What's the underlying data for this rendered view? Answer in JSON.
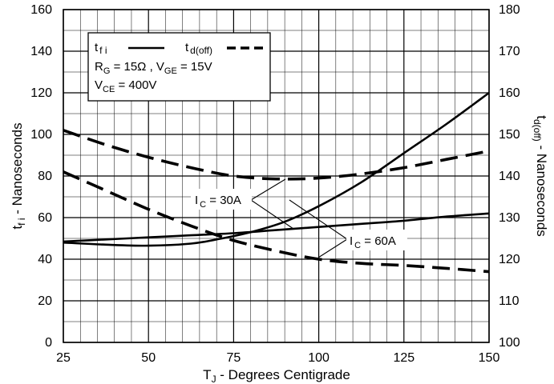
{
  "chart_data": {
    "type": "line",
    "x_axis": {
      "label_main": "T",
      "label_sub": "J",
      "label_rest": " - Degrees Centigrade",
      "range": [
        25,
        150
      ],
      "ticks": [
        25,
        50,
        75,
        100,
        125,
        150
      ]
    },
    "y_left": {
      "label_main": "t",
      "label_sub": "f i",
      "label_rest": " - Nanoseconds",
      "range": [
        0,
        160
      ],
      "ticks": [
        0,
        20,
        40,
        60,
        80,
        100,
        120,
        140,
        160
      ]
    },
    "y_right": {
      "label_main": "t",
      "label_sub": "d(off)",
      "label_rest": " - Nanoseconds",
      "range": [
        100,
        180
      ],
      "ticks": [
        100,
        110,
        120,
        130,
        140,
        150,
        160,
        170,
        180
      ]
    },
    "grid": true,
    "legend": {
      "placement": "top-left",
      "tfi_main": "t",
      "tfi_sub": "f i",
      "tdoff_main": "t",
      "tdoff_sub": "d(off)",
      "cond1_rg": "R",
      "cond1_rg_sub": "G",
      "cond1_rg_val": " = 15Ω ,  V",
      "cond1_vge_sub": "GE",
      "cond1_vge_val": " = 15V",
      "cond2_v": "V",
      "cond2_vce_sub": "CE",
      "cond2_vce_val": " = 400V"
    },
    "series": [
      {
        "group": "IC = 30A",
        "kind": "t_fi",
        "axis": "left",
        "style": "solid",
        "x": [
          25,
          37.5,
          50,
          62.5,
          75,
          87.5,
          100,
          112.5,
          125,
          137.5,
          150
        ],
        "y": [
          48.5,
          49.5,
          50.5,
          51.5,
          52.5,
          54,
          55.5,
          57,
          58.5,
          60.5,
          62
        ]
      },
      {
        "group": "IC = 60A",
        "kind": "t_fi",
        "axis": "left",
        "style": "solid",
        "x": [
          25,
          37.5,
          50,
          62.5,
          70,
          80,
          90,
          100,
          112.5,
          125,
          137.5,
          150
        ],
        "y": [
          48,
          47,
          46.5,
          47.5,
          49.5,
          53,
          58,
          65.5,
          77,
          91,
          105,
          120
        ]
      },
      {
        "group": "IC = 30A",
        "kind": "t_d(off)",
        "axis": "right",
        "style": "dashed",
        "x": [
          25,
          37.5,
          50,
          62.5,
          75,
          87.5,
          100,
          112.5,
          125,
          137.5,
          150
        ],
        "y": [
          151,
          147.5,
          144.5,
          142,
          140,
          139.3,
          139.5,
          140.5,
          142,
          144,
          146
        ]
      },
      {
        "group": "IC = 60A",
        "kind": "t_d(off)",
        "axis": "right",
        "style": "dashed",
        "x": [
          25,
          37.5,
          50,
          62.5,
          75,
          87.5,
          100,
          112.5,
          125,
          137.5,
          150
        ],
        "y": [
          141,
          136.5,
          132,
          128,
          124.5,
          122,
          120,
          119,
          118.5,
          117.8,
          117
        ]
      }
    ],
    "annotations": [
      {
        "main": "I",
        "sub": "C",
        "rest": " = 30A"
      },
      {
        "main": "I",
        "sub": "C",
        "rest": " = 60A"
      }
    ]
  }
}
